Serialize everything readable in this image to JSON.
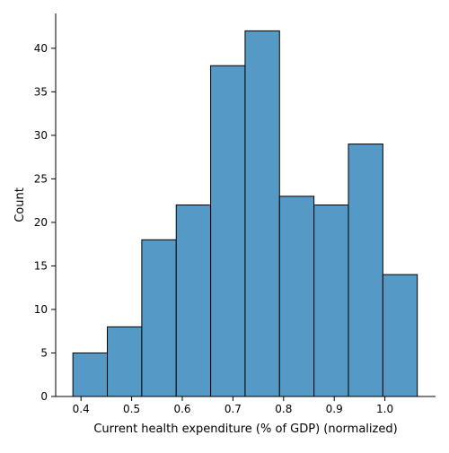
{
  "chart_data": {
    "type": "bar",
    "subtype": "histogram",
    "title": "",
    "xlabel": "Current health expenditure (% of GDP) (normalized)",
    "ylabel": "Count",
    "bins": [
      {
        "x0": 0.384,
        "x1": 0.452,
        "count": 5
      },
      {
        "x0": 0.452,
        "x1": 0.52,
        "count": 8
      },
      {
        "x0": 0.52,
        "x1": 0.588,
        "count": 18
      },
      {
        "x0": 0.588,
        "x1": 0.656,
        "count": 22
      },
      {
        "x0": 0.656,
        "x1": 0.724,
        "count": 38
      },
      {
        "x0": 0.724,
        "x1": 0.792,
        "count": 42
      },
      {
        "x0": 0.792,
        "x1": 0.86,
        "count": 23
      },
      {
        "x0": 0.86,
        "x1": 0.928,
        "count": 22
      },
      {
        "x0": 0.928,
        "x1": 0.996,
        "count": 29
      },
      {
        "x0": 0.996,
        "x1": 1.064,
        "count": 14
      }
    ],
    "xlim": [
      0.35,
      1.1
    ],
    "ylim": [
      0,
      44
    ],
    "xticks": [
      0.4,
      0.5,
      0.6,
      0.7,
      0.8,
      0.9,
      1.0
    ],
    "xtick_labels": [
      "0.4",
      "0.5",
      "0.6",
      "0.7",
      "0.8",
      "0.9",
      "1.0"
    ],
    "yticks": [
      0,
      5,
      10,
      15,
      20,
      25,
      30,
      35,
      40
    ],
    "ytick_labels": [
      "0",
      "5",
      "10",
      "15",
      "20",
      "25",
      "30",
      "35",
      "40"
    ],
    "bar_color": "#5599c7",
    "edge_color": "#000000",
    "grid": false,
    "legend": "none"
  }
}
